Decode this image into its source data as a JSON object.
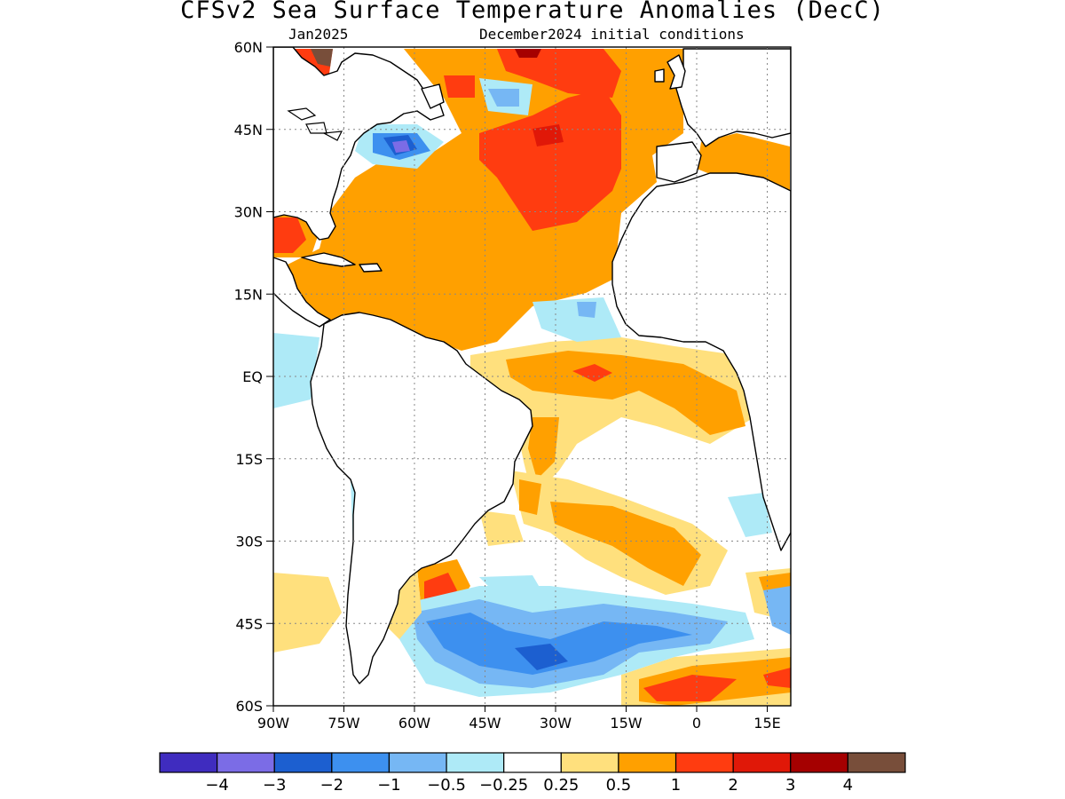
{
  "title": "CFSv2 Sea Surface Temperature Anomalies (DecC)",
  "subtitle_left": "Jan2025",
  "subtitle_right": "December2024 initial conditions",
  "map": {
    "lon_range": [
      -90,
      20
    ],
    "lat_range": [
      -60,
      60
    ],
    "lat_labels": [
      "60N",
      "45N",
      "30N",
      "15N",
      "EQ",
      "15S",
      "30S",
      "45S",
      "60S"
    ],
    "lon_labels": [
      "90W",
      "75W",
      "60W",
      "45W",
      "30W",
      "15W",
      "0",
      "15E"
    ],
    "gridlines": "dotted",
    "ocean_fill": "white",
    "land_fill": "white",
    "coastline_color": "#000000"
  },
  "colorbar": {
    "labels": [
      "−4",
      "−3",
      "−2",
      "−1",
      "−0.5",
      "−0.25",
      "0.25",
      "0.5",
      "1",
      "2",
      "3",
      "4"
    ],
    "colors": [
      "#3f2cbf",
      "#7b6ce6",
      "#1c5fd0",
      "#3d90ef",
      "#76b7f4",
      "#aeeaf7",
      "#ffffff",
      "#ffe07d",
      "#ffa000",
      "#ff3c10",
      "#e01808",
      "#a50000",
      "#784e3a"
    ]
  }
}
